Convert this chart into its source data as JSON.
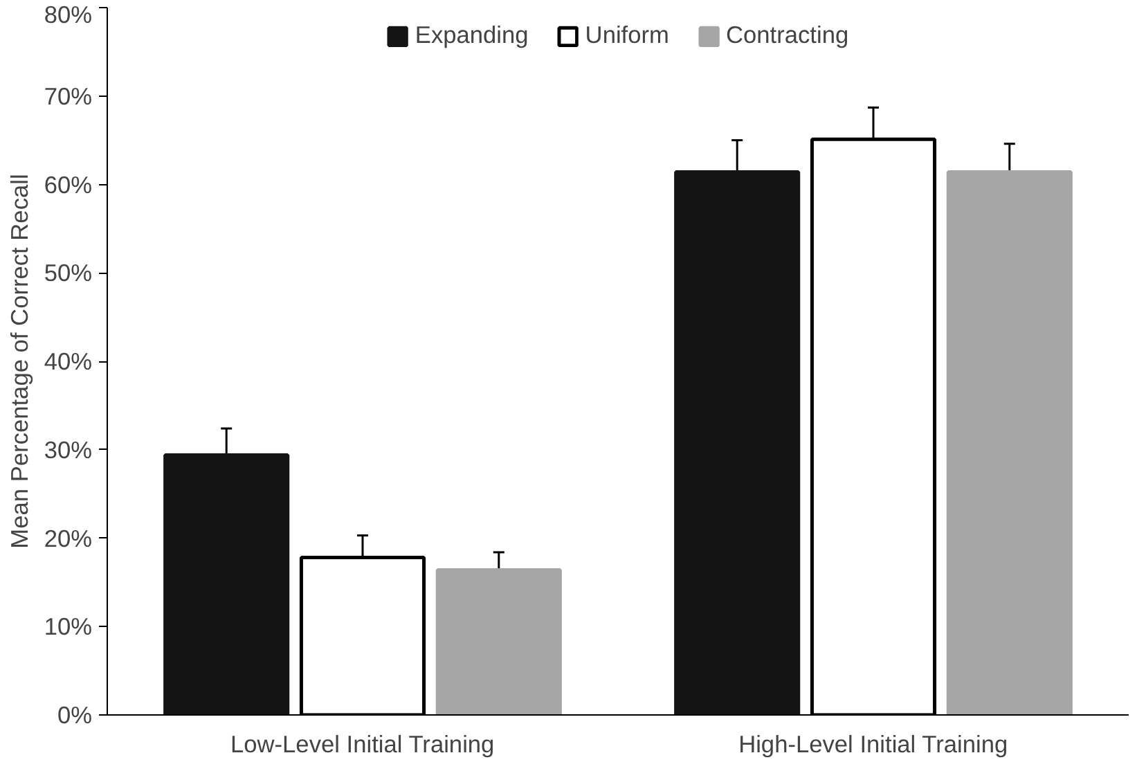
{
  "chart_data": {
    "type": "bar",
    "ylabel": "Mean Percentage of Correct Recall",
    "categories": [
      "Low-Level Initial Training",
      "High-Level Initial Training"
    ],
    "series": [
      {
        "name": "Expanding",
        "color": "#141414",
        "values": [
          29.4,
          61.4
        ],
        "errors": [
          3.0,
          3.6
        ]
      },
      {
        "name": "Uniform",
        "color": "#ffffff",
        "values": [
          17.8,
          65.1
        ],
        "errors": [
          2.5,
          3.6
        ]
      },
      {
        "name": "Contracting",
        "color": "#a6a6a6",
        "values": [
          16.4,
          61.4
        ],
        "errors": [
          2.0,
          3.2
        ]
      }
    ],
    "ylim": [
      0,
      80
    ],
    "yticks": [
      {
        "value": 0,
        "label": "0%"
      },
      {
        "value": 10,
        "label": "10%"
      },
      {
        "value": 20,
        "label": "20%"
      },
      {
        "value": 30,
        "label": "30%"
      },
      {
        "value": 40,
        "label": "40%"
      },
      {
        "value": 50,
        "label": "50%"
      },
      {
        "value": 60,
        "label": "60%"
      },
      {
        "value": 70,
        "label": "70%"
      },
      {
        "value": 80,
        "label": "80%"
      }
    ],
    "legend": "top",
    "grid": false
  }
}
